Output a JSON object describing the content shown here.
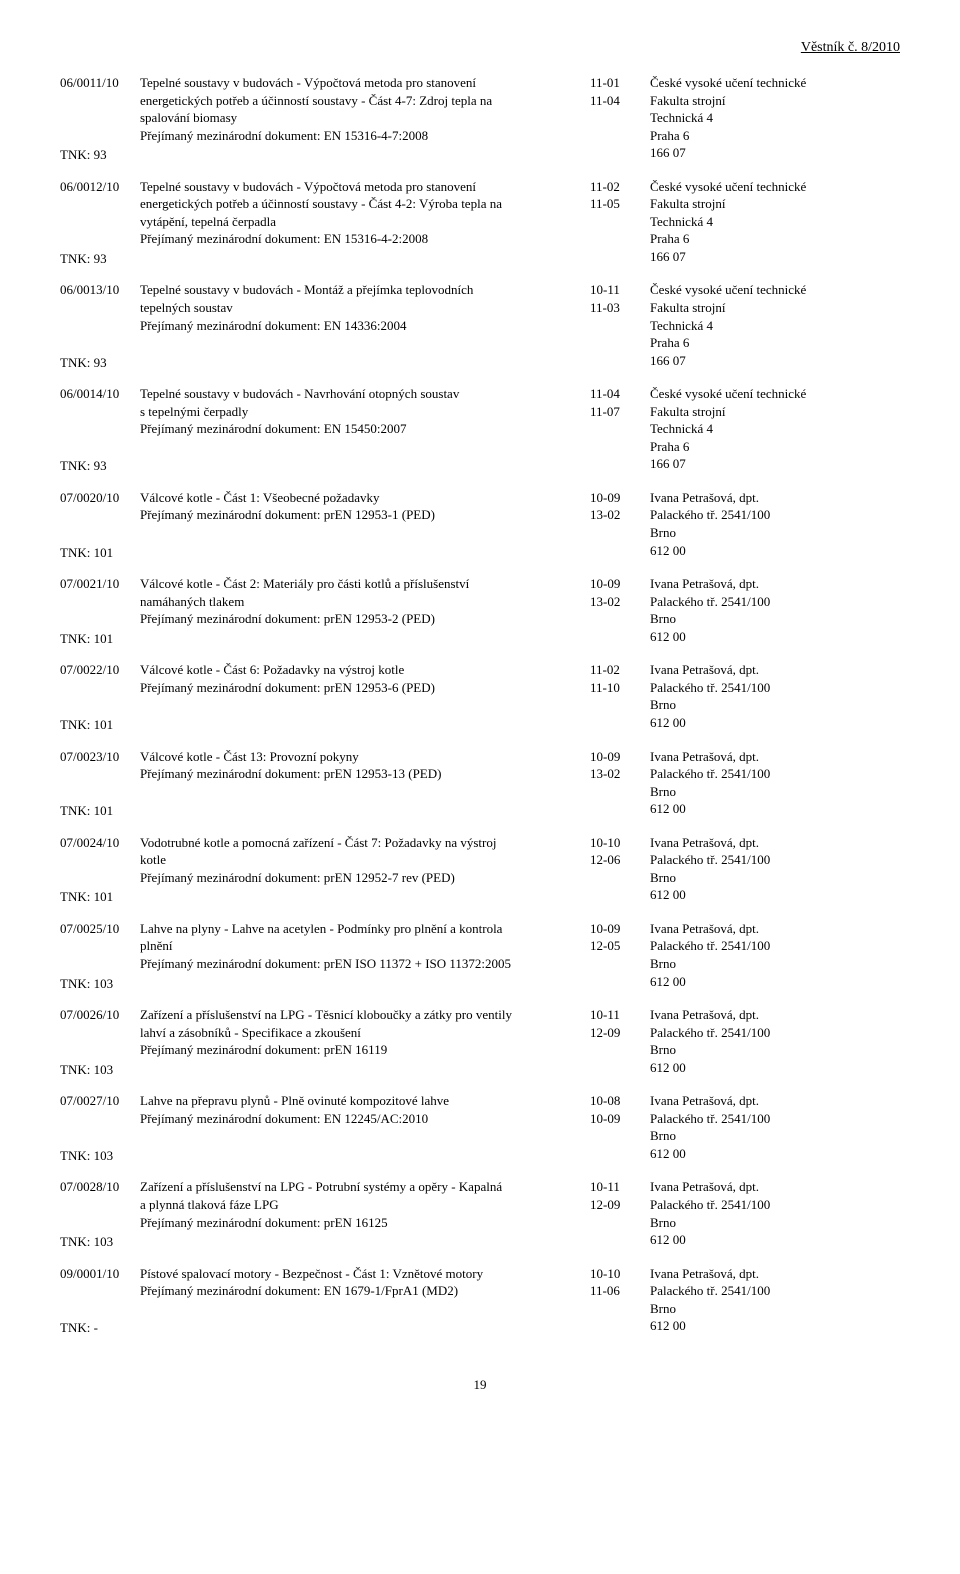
{
  "header": "Věstník č. 8/2010",
  "page_number": "19",
  "rows": [
    {
      "code": "06/0011/10",
      "tnk": "TNK: 93",
      "title_lines": [
        "Tepelné soustavy v budovách - Výpočtová metoda pro stanovení",
        "energetických potřeb a účinností soustavy - Část 4-7: Zdroj tepla na",
        "spalování biomasy",
        "Přejímaný mezinárodní dokument: EN 15316-4-7:2008"
      ],
      "dates": [
        "11-01",
        "11-04"
      ],
      "addr": [
        "České vysoké učení technické",
        "Fakulta strojní",
        "Technická 4",
        "Praha 6",
        "166 07"
      ]
    },
    {
      "code": "06/0012/10",
      "tnk": "TNK: 93",
      "title_lines": [
        "Tepelné soustavy v budovách - Výpočtová metoda pro stanovení",
        "energetických potřeb a účinností soustavy - Část 4-2: Výroba tepla na",
        "vytápění, tepelná čerpadla",
        "Přejímaný mezinárodní dokument: EN 15316-4-2:2008"
      ],
      "dates": [
        "11-02",
        "11-05"
      ],
      "addr": [
        "České vysoké učení technické",
        "Fakulta strojní",
        "Technická 4",
        "Praha 6",
        "166 07"
      ]
    },
    {
      "code": "06/0013/10",
      "tnk": "TNK: 93",
      "title_lines": [
        "Tepelné soustavy v budovách - Montáž a přejímka teplovodních",
        "tepelných soustav",
        "Přejímaný mezinárodní dokument: EN 14336:2004"
      ],
      "dates": [
        "10-11",
        "11-03"
      ],
      "addr": [
        "České vysoké učení technické",
        "Fakulta strojní",
        "Technická 4",
        "Praha 6",
        "166 07"
      ]
    },
    {
      "code": "06/0014/10",
      "tnk": "TNK: 93",
      "title_lines": [
        "Tepelné soustavy v budovách - Navrhování otopných soustav",
        "s tepelnými čerpadly",
        "Přejímaný mezinárodní dokument: EN 15450:2007"
      ],
      "dates": [
        "11-04",
        "11-07"
      ],
      "addr": [
        "České vysoké učení technické",
        "Fakulta strojní",
        "Technická 4",
        "Praha 6",
        "166 07"
      ]
    },
    {
      "code": "07/0020/10",
      "tnk": "TNK: 101",
      "title_lines": [
        "Válcové kotle - Část 1: Všeobecné požadavky",
        "Přejímaný mezinárodní dokument: prEN 12953-1 (PED)"
      ],
      "dates": [
        "10-09",
        "13-02"
      ],
      "addr": [
        "Ivana Petrašová, dpt.",
        "Palackého tř. 2541/100",
        "Brno",
        "612 00"
      ]
    },
    {
      "code": "07/0021/10",
      "tnk": "TNK: 101",
      "title_lines": [
        "Válcové kotle - Část 2: Materiály pro části kotlů a příslušenství",
        "namáhaných tlakem",
        "Přejímaný mezinárodní dokument: prEN 12953-2 (PED)"
      ],
      "dates": [
        "10-09",
        "13-02"
      ],
      "addr": [
        "Ivana Petrašová, dpt.",
        "Palackého tř. 2541/100",
        "Brno",
        "612 00"
      ]
    },
    {
      "code": "07/0022/10",
      "tnk": "TNK: 101",
      "title_lines": [
        "Válcové kotle - Část 6: Požadavky na výstroj kotle",
        "Přejímaný mezinárodní dokument: prEN 12953-6 (PED)"
      ],
      "dates": [
        "11-02",
        "11-10"
      ],
      "addr": [
        "Ivana Petrašová, dpt.",
        "Palackého tř. 2541/100",
        "Brno",
        "612 00"
      ]
    },
    {
      "code": "07/0023/10",
      "tnk": "TNK: 101",
      "title_lines": [
        "Válcové kotle - Část 13: Provozní pokyny",
        "Přejímaný mezinárodní dokument: prEN 12953-13 (PED)"
      ],
      "dates": [
        "10-09",
        "13-02"
      ],
      "addr": [
        "Ivana Petrašová, dpt.",
        "Palackého tř. 2541/100",
        "Brno",
        "612 00"
      ]
    },
    {
      "code": "07/0024/10",
      "tnk": "TNK: 101",
      "title_lines": [
        "Vodotrubné kotle a pomocná zařízení - Část 7: Požadavky na výstroj",
        "kotle",
        "Přejímaný mezinárodní dokument: prEN 12952-7 rev (PED)"
      ],
      "dates": [
        "10-10",
        "12-06"
      ],
      "addr": [
        "Ivana Petrašová, dpt.",
        "Palackého tř. 2541/100",
        "Brno",
        "612 00"
      ]
    },
    {
      "code": "07/0025/10",
      "tnk": "TNK: 103",
      "title_lines": [
        "Lahve na plyny - Lahve na acetylen - Podmínky pro plnění a kontrola",
        "plnění",
        "Přejímaný mezinárodní dokument: prEN ISO 11372 + ISO 11372:2005"
      ],
      "dates": [
        "10-09",
        "12-05"
      ],
      "addr": [
        "Ivana Petrašová, dpt.",
        "Palackého tř. 2541/100",
        "Brno",
        "612 00"
      ]
    },
    {
      "code": "07/0026/10",
      "tnk": "TNK: 103",
      "title_lines": [
        "Zařízení a příslušenství na LPG - Těsnicí kloboučky a zátky pro ventily",
        "lahví a zásobníků - Specifikace a zkoušení",
        "Přejímaný mezinárodní dokument: prEN 16119"
      ],
      "dates": [
        "10-11",
        "12-09"
      ],
      "addr": [
        "Ivana Petrašová, dpt.",
        "Palackého tř. 2541/100",
        "Brno",
        "612 00"
      ]
    },
    {
      "code": "07/0027/10",
      "tnk": "TNK: 103",
      "title_lines": [
        "Lahve na přepravu plynů - Plně ovinuté kompozitové lahve",
        "Přejímaný mezinárodní dokument: EN 12245/AC:2010"
      ],
      "dates": [
        "10-08",
        "10-09"
      ],
      "addr": [
        "Ivana Petrašová, dpt.",
        "Palackého tř. 2541/100",
        "Brno",
        "612 00"
      ]
    },
    {
      "code": "07/0028/10",
      "tnk": "TNK: 103",
      "title_lines": [
        "Zařízení a příslušenství na LPG - Potrubní systémy a opěry - Kapalná",
        "a plynná tlaková fáze LPG",
        "Přejímaný mezinárodní dokument: prEN 16125"
      ],
      "dates": [
        "10-11",
        "12-09"
      ],
      "addr": [
        "Ivana Petrašová, dpt.",
        "Palackého tř. 2541/100",
        "Brno",
        "612 00"
      ]
    },
    {
      "code": "09/0001/10",
      "tnk": "TNK: -",
      "title_lines": [
        "Pístové spalovací motory - Bezpečnost - Část 1: Vznětové motory",
        "Přejímaný mezinárodní dokument: EN 1679-1/FprA1 (MD2)"
      ],
      "dates": [
        "10-10",
        "11-06"
      ],
      "addr": [
        "Ivana Petrašová, dpt.",
        "Palackého tř. 2541/100",
        "Brno",
        "612 00"
      ]
    }
  ]
}
